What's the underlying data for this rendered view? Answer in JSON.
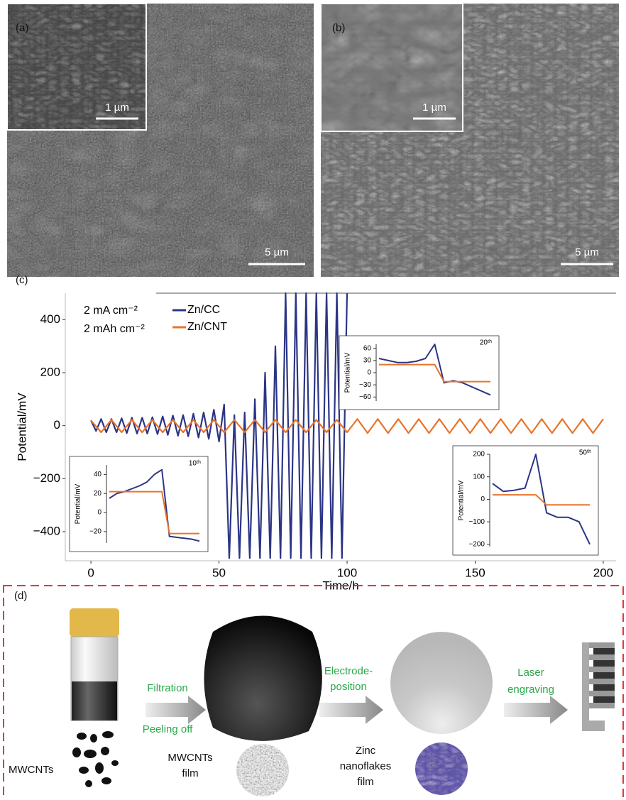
{
  "panels": {
    "a": {
      "label": "(a)",
      "inset_scale": "1 µm",
      "scale": "5 µm"
    },
    "b": {
      "label": "(b)",
      "inset_scale": "1 µm",
      "scale": "5 µm"
    },
    "c": {
      "label": "(c)"
    },
    "d": {
      "label": "(d)",
      "step1": [
        "Filtration",
        "Peeling off"
      ],
      "step2": [
        "Electrode-",
        "position"
      ],
      "step3": [
        "Laser",
        "engraving"
      ],
      "material1": [
        "MWCNTs"
      ],
      "material2": [
        "MWCNTs",
        "film"
      ],
      "material3": [
        "Zinc",
        "nanoflakes",
        "film"
      ]
    }
  },
  "chart_data": [
    {
      "type": "line",
      "xlabel": "Time/h",
      "ylabel": "Potential/mV",
      "annotations": [
        "2 mA cm⁻²",
        "2 mAh cm⁻²"
      ],
      "xlim": [
        -10,
        205
      ],
      "ylim": [
        -510,
        500
      ],
      "xticks": [
        0,
        50,
        100,
        150,
        200
      ],
      "yticks": [
        {
          "value": -400,
          "label": "−400"
        },
        {
          "value": -200,
          "label": "−200"
        },
        0,
        200,
        400
      ],
      "series": [
        {
          "name": "Zn/CC",
          "color": "#2b3585",
          "x": [
            0,
            2,
            4,
            6,
            8,
            10,
            12,
            14,
            16,
            18,
            20,
            22,
            24,
            26,
            28,
            30,
            32,
            34,
            36,
            38,
            40,
            42,
            44,
            46,
            48,
            50,
            52,
            54,
            56,
            58,
            60,
            62,
            64,
            66,
            68,
            70,
            72,
            74,
            76,
            78,
            80,
            82,
            84,
            86,
            88,
            90,
            92,
            94,
            96,
            98,
            100
          ],
          "values": [
            20,
            -20,
            25,
            -25,
            25,
            -25,
            28,
            -28,
            30,
            -30,
            30,
            -30,
            32,
            -32,
            35,
            -35,
            38,
            -38,
            40,
            -40,
            45,
            -45,
            50,
            -50,
            60,
            -60,
            80,
            -500,
            40,
            -500,
            50,
            -500,
            100,
            -500,
            200,
            -500,
            300,
            -500,
            500,
            -500,
            500,
            -500,
            500,
            -500,
            500,
            -500,
            500,
            -500,
            500,
            -500,
            500
          ]
        },
        {
          "name": "Zn/CNT",
          "color": "#e8742a",
          "x": [
            0,
            4,
            8,
            12,
            16,
            20,
            24,
            28,
            32,
            36,
            40,
            44,
            48,
            52,
            56,
            60,
            64,
            68,
            72,
            76,
            80,
            84,
            88,
            92,
            96,
            100,
            104,
            108,
            112,
            116,
            120,
            124,
            128,
            132,
            136,
            140,
            144,
            148,
            152,
            156,
            160,
            164,
            168,
            172,
            176,
            180,
            184,
            188,
            192,
            196,
            200
          ],
          "values": [
            20,
            -25,
            22,
            -25,
            22,
            -25,
            22,
            -25,
            22,
            -25,
            22,
            -25,
            22,
            -25,
            22,
            -25,
            22,
            -25,
            22,
            -25,
            22,
            -25,
            22,
            -25,
            22,
            -25,
            25,
            -28,
            25,
            -28,
            25,
            -28,
            25,
            -28,
            25,
            -28,
            25,
            -28,
            25,
            -28,
            25,
            -28,
            25,
            -28,
            25,
            -28,
            25,
            -28,
            25,
            -28,
            25
          ]
        }
      ]
    },
    {
      "type": "line",
      "ylabel": "Potential/mV",
      "title": "10ᵗʰ",
      "ylim": [
        -32,
        50
      ],
      "yticks": [
        {
          "value": -20,
          "label": "−20"
        },
        0,
        20,
        40
      ],
      "series": [
        {
          "name": "Zn/CC",
          "color": "#2b3585",
          "values": [
            15,
            20,
            22,
            25,
            28,
            32,
            40,
            45,
            -25,
            -26,
            -27,
            -28,
            -30
          ]
        },
        {
          "name": "Zn/CNT",
          "color": "#e8742a",
          "values": [
            22,
            22,
            22,
            22,
            22,
            22,
            22,
            22,
            -22,
            -22,
            -22,
            -22,
            -22
          ]
        }
      ]
    },
    {
      "type": "line",
      "ylabel": "Potential/mV",
      "title": "20ᵗʰ",
      "ylim": [
        -70,
        70
      ],
      "yticks": [
        {
          "value": -60,
          "label": "−60"
        },
        {
          "value": -30,
          "label": "−30"
        },
        0,
        30,
        60
      ],
      "series": [
        {
          "name": "Zn/CC",
          "color": "#2b3585",
          "values": [
            35,
            30,
            25,
            25,
            28,
            35,
            70,
            -25,
            -20,
            -25,
            -35,
            -45,
            -55
          ]
        },
        {
          "name": "Zn/CNT",
          "color": "#e8742a",
          "values": [
            20,
            20,
            20,
            20,
            20,
            20,
            20,
            -22,
            -22,
            -22,
            -22,
            -22,
            -22
          ]
        }
      ]
    },
    {
      "type": "line",
      "ylabel": "Potential/mV",
      "title": "50ᵗʰ",
      "ylim": [
        -210,
        200
      ],
      "yticks": [
        {
          "value": -200,
          "label": "−200"
        },
        {
          "value": -100,
          "label": "−100"
        },
        0,
        100,
        200
      ],
      "series": [
        {
          "name": "Zn/CC",
          "color": "#2b3585",
          "values": [
            70,
            35,
            40,
            50,
            200,
            -60,
            -80,
            -80,
            -100,
            -200
          ]
        },
        {
          "name": "Zn/CNT",
          "color": "#e8742a",
          "values": [
            20,
            20,
            20,
            20,
            20,
            -25,
            -25,
            -25,
            -25,
            -25
          ]
        }
      ]
    }
  ]
}
